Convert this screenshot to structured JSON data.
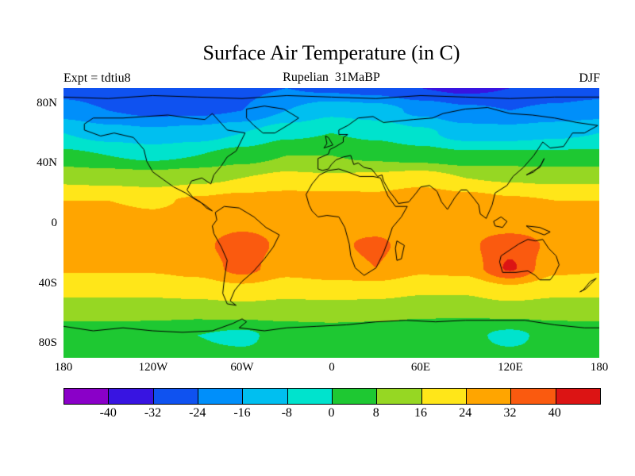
{
  "header": {
    "title": "Surface Air Temperature (in C)",
    "experiment": "Expt = tdtiu8",
    "subtitle": "Rupelian  31MaBP",
    "season": "DJF"
  },
  "chart_data": {
    "type": "heatmap",
    "title": "Surface Air Temperature (in C)",
    "experiment": "tdtiu8",
    "epoch": "Rupelian 31MaBP",
    "season": "DJF",
    "units": "C",
    "projection": "equirectangular",
    "lon_range": [
      -180,
      180
    ],
    "lat_range": [
      -90,
      90
    ],
    "lon_ticks": [
      "180",
      "120W",
      "60W",
      "0",
      "60E",
      "120E",
      "180"
    ],
    "lat_ticks": [
      "80N",
      "40N",
      "0",
      "40S",
      "80S"
    ],
    "colorbar": {
      "levels": [
        -40,
        -32,
        -24,
        -16,
        -8,
        0,
        8,
        16,
        24,
        32,
        40
      ],
      "colors": [
        "#8a00c8",
        "#3814e1",
        "#0f52f0",
        "#008ffa",
        "#00bff0",
        "#00e3cd",
        "#1ec832",
        "#96d723",
        "#ffe619",
        "#ffa500",
        "#fa5a0f",
        "#dc1414"
      ]
    },
    "grid": {
      "lats": [
        90,
        75,
        60,
        45,
        30,
        15,
        0,
        -15,
        -30,
        -45,
        -60,
        -75,
        -90
      ],
      "lons": [
        -180,
        -150,
        -120,
        -90,
        -60,
        -30,
        0,
        30,
        60,
        90,
        120,
        150,
        180
      ],
      "temperature": [
        [
          -28,
          -30,
          -32,
          -30,
          -26,
          -24,
          -26,
          -28,
          -32,
          -34,
          -32,
          -30,
          -28
        ],
        [
          -20,
          -24,
          -26,
          -26,
          -24,
          -16,
          -10,
          -12,
          -18,
          -22,
          -24,
          -22,
          -20
        ],
        [
          -8,
          -12,
          -14,
          -12,
          -8,
          -2,
          0,
          -2,
          -6,
          -12,
          -12,
          -10,
          -8
        ],
        [
          2,
          0,
          -2,
          0,
          4,
          8,
          8,
          6,
          4,
          2,
          2,
          2,
          2
        ],
        [
          14,
          13,
          12,
          14,
          16,
          18,
          17,
          18,
          20,
          16,
          15,
          14,
          14
        ],
        [
          24,
          24,
          23,
          25,
          27,
          28,
          28,
          27,
          31,
          28,
          25,
          24,
          24
        ],
        [
          27,
          27,
          26,
          28,
          30,
          29,
          31,
          30,
          28,
          28,
          27,
          27,
          27
        ],
        [
          28,
          28,
          27,
          30,
          36,
          30,
          31,
          33,
          29,
          30,
          38,
          30,
          28
        ],
        [
          25,
          25,
          25,
          27,
          35,
          27,
          29,
          32,
          26,
          27,
          41,
          26,
          25
        ],
        [
          18,
          18,
          18,
          19,
          21,
          19,
          20,
          19,
          17,
          17,
          21,
          18,
          18
        ],
        [
          10,
          10,
          10,
          10,
          11,
          10,
          10,
          10,
          9,
          9,
          10,
          10,
          10
        ],
        [
          4,
          4,
          3,
          0,
          -2,
          4,
          5,
          4,
          3,
          2,
          -2,
          3,
          4
        ],
        [
          2,
          2,
          2,
          2,
          2,
          2,
          2,
          2,
          2,
          2,
          2,
          2,
          2
        ]
      ]
    }
  }
}
